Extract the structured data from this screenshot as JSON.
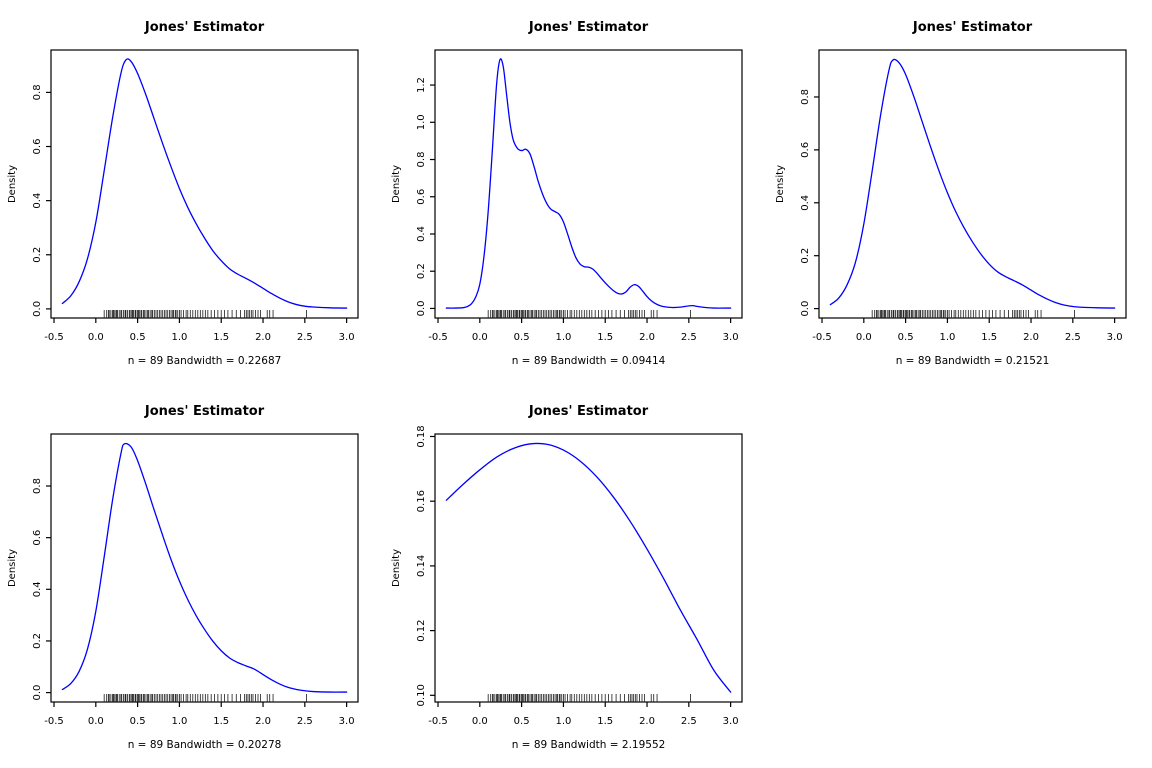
{
  "figure": {
    "background": "#ffffff",
    "curve_color": "#0000ff",
    "axis_color": "#000000",
    "rug_color": "#1a1a1a"
  },
  "chart_data": {
    "type": "line",
    "layout": "small-multiples 2 rows x 3 cols, 5 density plots, last cell empty",
    "grid": "off",
    "shared": {
      "title": "Jones' Estimator",
      "ylabel": "Density",
      "n": 89,
      "xtick_values": [
        -0.5,
        0.0,
        0.5,
        1.0,
        1.5,
        2.0,
        2.5,
        3.0
      ],
      "xtick_labels": [
        "-0.5",
        "0.0",
        "0.5",
        "1.0",
        "1.5",
        "2.0",
        "2.5",
        "3.0"
      ],
      "xlim": [
        -0.4,
        3.0
      ],
      "rug_values": [
        0.1,
        0.13,
        0.15,
        0.16,
        0.18,
        0.2,
        0.21,
        0.22,
        0.24,
        0.25,
        0.26,
        0.28,
        0.3,
        0.31,
        0.33,
        0.35,
        0.36,
        0.38,
        0.4,
        0.41,
        0.43,
        0.44,
        0.45,
        0.47,
        0.48,
        0.5,
        0.51,
        0.52,
        0.54,
        0.55,
        0.57,
        0.58,
        0.6,
        0.62,
        0.63,
        0.65,
        0.67,
        0.68,
        0.7,
        0.72,
        0.74,
        0.76,
        0.78,
        0.8,
        0.82,
        0.84,
        0.86,
        0.88,
        0.9,
        0.92,
        0.93,
        0.95,
        0.96,
        0.98,
        1.0,
        1.02,
        1.05,
        1.08,
        1.1,
        1.13,
        1.16,
        1.19,
        1.22,
        1.25,
        1.28,
        1.31,
        1.34,
        1.38,
        1.42,
        1.46,
        1.5,
        1.54,
        1.58,
        1.63,
        1.68,
        1.73,
        1.78,
        1.8,
        1.82,
        1.84,
        1.86,
        1.88,
        1.91,
        1.94,
        1.97,
        2.05,
        2.08,
        2.12,
        2.52
      ]
    },
    "panels": [
      {
        "title": "Jones' Estimator",
        "subtitle": "n =  89 Bandwidth =  0.22687",
        "n": 89,
        "bandwidth": 0.22687,
        "ytick_values": [
          0.0,
          0.2,
          0.4,
          0.6,
          0.8
        ],
        "ytick_labels": [
          "0.0",
          "0.2",
          "0.4",
          "0.6",
          "0.8"
        ],
        "curve": {
          "x": [
            -0.4,
            -0.3,
            -0.2,
            -0.1,
            0,
            0.1,
            0.2,
            0.3,
            0.36,
            0.42,
            0.5,
            0.6,
            0.7,
            0.8,
            0.9,
            1,
            1.1,
            1.2,
            1.3,
            1.4,
            1.5,
            1.6,
            1.7,
            1.8,
            1.9,
            2,
            2.1,
            2.2,
            2.3,
            2.4,
            2.5,
            2.6,
            2.8,
            3
          ],
          "y": [
            0.02,
            0.048,
            0.1,
            0.185,
            0.32,
            0.51,
            0.705,
            0.87,
            0.92,
            0.915,
            0.87,
            0.79,
            0.7,
            0.61,
            0.525,
            0.445,
            0.375,
            0.315,
            0.262,
            0.215,
            0.178,
            0.148,
            0.128,
            0.112,
            0.095,
            0.076,
            0.057,
            0.04,
            0.026,
            0.016,
            0.01,
            0.007,
            0.004,
            0.003
          ]
        }
      },
      {
        "title": "Jones' Estimator",
        "subtitle": "n =  89 Bandwidth =  0.09414",
        "n": 89,
        "bandwidth": 0.09414,
        "ytick_values": [
          0.0,
          0.2,
          0.4,
          0.6,
          0.8,
          1.0,
          1.2
        ],
        "ytick_labels": [
          "0.0",
          "0.2",
          "0.4",
          "0.6",
          "0.8",
          "1.0",
          "1.2"
        ],
        "curve": {
          "x": [
            -0.4,
            -0.3,
            -0.2,
            -0.15,
            -0.1,
            -0.05,
            0,
            0.05,
            0.1,
            0.15,
            0.2,
            0.24,
            0.28,
            0.32,
            0.36,
            0.4,
            0.45,
            0.5,
            0.55,
            0.6,
            0.65,
            0.7,
            0.75,
            0.8,
            0.85,
            0.9,
            0.95,
            1,
            1.05,
            1.1,
            1.15,
            1.2,
            1.25,
            1.3,
            1.35,
            1.4,
            1.45,
            1.5,
            1.55,
            1.6,
            1.65,
            1.7,
            1.75,
            1.8,
            1.85,
            1.9,
            1.95,
            2,
            2.05,
            2.1,
            2.15,
            2.2,
            2.3,
            2.4,
            2.5,
            2.55,
            2.6,
            2.7,
            2.8,
            3
          ],
          "y": [
            0.002,
            0.002,
            0.004,
            0.01,
            0.025,
            0.06,
            0.13,
            0.28,
            0.52,
            0.85,
            1.2,
            1.335,
            1.3,
            1.15,
            1.0,
            0.905,
            0.86,
            0.848,
            0.855,
            0.83,
            0.76,
            0.68,
            0.615,
            0.565,
            0.533,
            0.52,
            0.505,
            0.465,
            0.4,
            0.33,
            0.272,
            0.238,
            0.224,
            0.222,
            0.212,
            0.19,
            0.163,
            0.138,
            0.115,
            0.095,
            0.081,
            0.078,
            0.09,
            0.115,
            0.128,
            0.118,
            0.092,
            0.064,
            0.042,
            0.026,
            0.016,
            0.01,
            0.005,
            0.007,
            0.014,
            0.015,
            0.011,
            0.005,
            0.002,
            0.002
          ]
        }
      },
      {
        "title": "Jones' Estimator",
        "subtitle": "n =  89 Bandwidth =  0.21521",
        "n": 89,
        "bandwidth": 0.21521,
        "ytick_values": [
          0.0,
          0.2,
          0.4,
          0.6,
          0.8
        ],
        "ytick_labels": [
          "0.0",
          "0.2",
          "0.4",
          "0.6",
          "0.8"
        ],
        "curve": {
          "x": [
            -0.4,
            -0.3,
            -0.2,
            -0.1,
            0,
            0.1,
            0.2,
            0.3,
            0.35,
            0.42,
            0.5,
            0.6,
            0.7,
            0.8,
            0.9,
            1,
            1.1,
            1.2,
            1.3,
            1.4,
            1.5,
            1.6,
            1.7,
            1.8,
            1.9,
            2,
            2.1,
            2.2,
            2.3,
            2.4,
            2.5,
            2.6,
            2.8,
            3
          ],
          "y": [
            0.015,
            0.04,
            0.09,
            0.175,
            0.32,
            0.52,
            0.73,
            0.9,
            0.94,
            0.93,
            0.885,
            0.8,
            0.705,
            0.61,
            0.52,
            0.438,
            0.366,
            0.305,
            0.252,
            0.206,
            0.168,
            0.139,
            0.12,
            0.105,
            0.089,
            0.07,
            0.051,
            0.035,
            0.022,
            0.013,
            0.008,
            0.005,
            0.003,
            0.002
          ]
        }
      },
      {
        "title": "Jones' Estimator",
        "subtitle": "n =  89 Bandwidth =  0.20278",
        "n": 89,
        "bandwidth": 0.20278,
        "ytick_values": [
          0.0,
          0.2,
          0.4,
          0.6,
          0.8
        ],
        "ytick_labels": [
          "0.0",
          "0.2",
          "0.4",
          "0.6",
          "0.8"
        ],
        "curve": {
          "x": [
            -0.4,
            -0.3,
            -0.2,
            -0.1,
            0,
            0.1,
            0.2,
            0.3,
            0.34,
            0.42,
            0.5,
            0.6,
            0.7,
            0.8,
            0.9,
            1,
            1.1,
            1.2,
            1.3,
            1.4,
            1.5,
            1.6,
            1.7,
            1.8,
            1.9,
            2,
            2.1,
            2.2,
            2.3,
            2.4,
            2.5,
            2.6,
            2.8,
            3
          ],
          "y": [
            0.012,
            0.035,
            0.082,
            0.168,
            0.315,
            0.525,
            0.745,
            0.925,
            0.963,
            0.952,
            0.898,
            0.805,
            0.705,
            0.608,
            0.515,
            0.432,
            0.36,
            0.298,
            0.245,
            0.199,
            0.162,
            0.134,
            0.116,
            0.103,
            0.09,
            0.07,
            0.05,
            0.033,
            0.02,
            0.012,
            0.007,
            0.004,
            0.002,
            0.002
          ]
        }
      },
      {
        "title": "Jones' Estimator",
        "subtitle": "n =  89 Bandwidth =  2.19552",
        "n": 89,
        "bandwidth": 2.19552,
        "ytick_values": [
          0.1,
          0.12,
          0.14,
          0.16,
          0.18
        ],
        "ytick_labels": [
          "0.10",
          "0.12",
          "0.14",
          "0.16",
          "0.18"
        ],
        "curve": {
          "x": [
            -0.4,
            -0.2,
            0,
            0.2,
            0.4,
            0.6,
            0.8,
            1,
            1.2,
            1.4,
            1.6,
            1.8,
            2,
            2.2,
            2.4,
            2.6,
            2.8,
            3
          ],
          "y": [
            0.1603,
            0.1652,
            0.1697,
            0.1736,
            0.1763,
            0.1777,
            0.1776,
            0.1758,
            0.1724,
            0.1675,
            0.1612,
            0.1537,
            0.1452,
            0.136,
            0.1263,
            0.1172,
            0.1077,
            0.101
          ]
        }
      }
    ]
  }
}
